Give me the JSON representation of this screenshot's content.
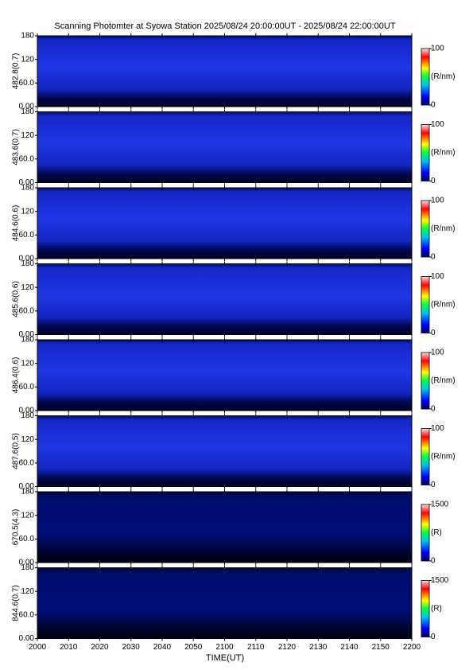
{
  "title": "Scanning Photomter at Syowa Station 2025/08/24 20:00:00UT - 2025/08/24 22:00:00UT",
  "x_axis": {
    "label": "TIME(UT)",
    "ticks": [
      "2000",
      "2010",
      "2020",
      "2030",
      "2040",
      "2050",
      "2100",
      "2110",
      "2120",
      "2130",
      "2140",
      "2150",
      "2200"
    ]
  },
  "chart_data": [
    {
      "type": "heatmap",
      "ylabel": "482.8(0.7)",
      "ylim": [
        0,
        180
      ],
      "yticks": [
        {
          "value": 0,
          "label": "0.00"
        },
        {
          "value": 60,
          "label": "60.0"
        },
        120,
        180
      ],
      "colorbar": {
        "label": "(R/nm)",
        "lim": [
          0,
          100
        ],
        "ticks": [
          0,
          100
        ]
      }
    },
    {
      "type": "heatmap",
      "ylabel": "483.6(0.7)",
      "ylim": [
        0,
        180
      ],
      "yticks": [
        {
          "value": 0,
          "label": "0.00"
        },
        {
          "value": 60,
          "label": "60.0"
        },
        120,
        180
      ],
      "colorbar": {
        "label": "(R/nm)",
        "lim": [
          0,
          100
        ],
        "ticks": [
          0,
          100
        ]
      }
    },
    {
      "type": "heatmap",
      "ylabel": "484.6(0.6)",
      "ylim": [
        0,
        180
      ],
      "yticks": [
        {
          "value": 0,
          "label": "0.00"
        },
        {
          "value": 60,
          "label": "60.0"
        },
        120,
        180
      ],
      "colorbar": {
        "label": "(R/nm)",
        "lim": [
          0,
          100
        ],
        "ticks": [
          0,
          100
        ]
      }
    },
    {
      "type": "heatmap",
      "ylabel": "485.6(0.6)",
      "ylim": [
        0,
        180
      ],
      "yticks": [
        {
          "value": 0,
          "label": "0.00"
        },
        {
          "value": 60,
          "label": "60.0"
        },
        120,
        180
      ],
      "colorbar": {
        "label": "(R/nm)",
        "lim": [
          0,
          100
        ],
        "ticks": [
          0,
          100
        ]
      }
    },
    {
      "type": "heatmap",
      "ylabel": "486.4(0.6)",
      "ylim": [
        0,
        180
      ],
      "yticks": [
        {
          "value": 0,
          "label": "0.00"
        },
        {
          "value": 60,
          "label": "60.0"
        },
        120,
        180
      ],
      "colorbar": {
        "label": "(R/nm)",
        "lim": [
          0,
          100
        ],
        "ticks": [
          0,
          100
        ]
      }
    },
    {
      "type": "heatmap",
      "ylabel": "487.6(0.5)",
      "ylim": [
        0,
        180
      ],
      "yticks": [
        {
          "value": 0,
          "label": "0.00"
        },
        {
          "value": 60,
          "label": "60.0"
        },
        120,
        180
      ],
      "colorbar": {
        "label": "(R/nm)",
        "lim": [
          0,
          100
        ],
        "ticks": [
          0,
          100
        ]
      }
    },
    {
      "type": "heatmap",
      "ylabel": "670.5(4.3)",
      "ylim": [
        0,
        180
      ],
      "yticks": [
        {
          "value": 0,
          "label": "0.00"
        },
        {
          "value": 60,
          "label": "60.0"
        },
        120,
        180
      ],
      "colorbar": {
        "label": "(R)",
        "lim": [
          0,
          1500
        ],
        "ticks": [
          0,
          1500
        ]
      }
    },
    {
      "type": "heatmap",
      "ylabel": "844.6(0.7)",
      "ylim": [
        0,
        180
      ],
      "yticks": [
        {
          "value": 0,
          "label": "0.00"
        },
        {
          "value": 60,
          "label": "60.0"
        },
        120,
        180
      ],
      "colorbar": {
        "label": "(R)",
        "lim": [
          0,
          1500
        ],
        "ticks": [
          0,
          1500
        ]
      }
    }
  ]
}
